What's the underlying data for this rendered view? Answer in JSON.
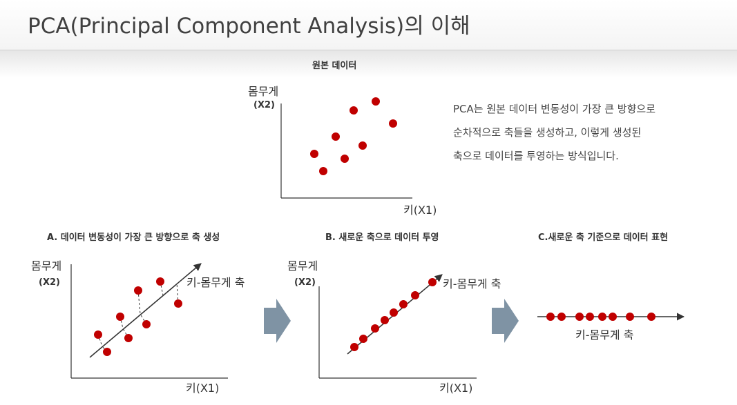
{
  "header": {
    "title": "PCA(Principal Component Analysis)의 이해"
  },
  "top_chart": {
    "title": "원본 데이터",
    "ylabel": "몸무게",
    "ylabel_sub": "(X2)",
    "xlabel": "키(X1)"
  },
  "description": {
    "lines": [
      "PCA는 원본 데이터 변동성이 가장 큰 방향으로",
      "순차적으로 축들을 생성하고, 이렇게 생성된",
      "축으로 데이터를 투영하는 방식입니다."
    ]
  },
  "panel_a": {
    "title": "A. 데이터 변동성이 가장 큰 방향으로 축 생성",
    "ylabel": "몸무게",
    "ylabel_sub": "(X2)",
    "xlabel": "키(X1)",
    "axis_label": "키-몸무게 축"
  },
  "panel_b": {
    "title": "B. 새로운 축으로 데이터 투영",
    "ylabel": "몸무게",
    "ylabel_sub": "(X2)",
    "xlabel": "키(X1)",
    "axis_label": "키-몸무게 축"
  },
  "panel_c": {
    "title": "C.새로운 축 기준으로 데이터 표현",
    "axis_label": "키-몸무게 축"
  },
  "colors": {
    "point": "#c00000",
    "arrow": "#7f93a4",
    "axis": "#333333"
  }
}
